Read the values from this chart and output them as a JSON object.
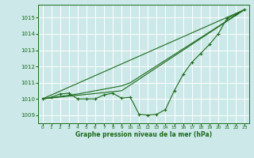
{
  "xlabel": "Graphe pression niveau de la mer (hPa)",
  "background_color": "#cce8e8",
  "grid_color": "#ffffff",
  "line_color": "#1a6b1a",
  "xlim": [
    -0.5,
    23.5
  ],
  "ylim": [
    1008.5,
    1015.8
  ],
  "yticks": [
    1009,
    1010,
    1011,
    1012,
    1013,
    1014,
    1015
  ],
  "xticks": [
    0,
    1,
    2,
    3,
    4,
    5,
    6,
    7,
    8,
    9,
    10,
    11,
    12,
    13,
    14,
    15,
    16,
    17,
    18,
    19,
    20,
    21,
    22,
    23
  ],
  "series1_x": [
    0,
    1,
    2,
    3,
    4,
    5,
    6,
    7,
    8,
    9,
    10,
    11,
    12,
    13,
    14,
    15,
    16,
    17,
    18,
    19,
    20,
    21,
    22,
    23
  ],
  "series1_y": [
    1010.0,
    1010.1,
    1010.3,
    1010.35,
    1010.0,
    1010.0,
    1010.0,
    1010.25,
    1010.35,
    1010.05,
    1010.1,
    1009.05,
    1009.0,
    1009.05,
    1009.35,
    1010.5,
    1011.5,
    1012.25,
    1012.8,
    1013.35,
    1014.0,
    1014.95,
    1015.2,
    1015.5
  ],
  "series2_x": [
    0,
    23
  ],
  "series2_y": [
    1010.0,
    1015.5
  ],
  "series3_x": [
    0,
    9,
    23
  ],
  "series3_y": [
    1010.0,
    1010.5,
    1015.5
  ],
  "series4_x": [
    0,
    4,
    9,
    10,
    23
  ],
  "series4_y": [
    1010.0,
    1010.3,
    1010.8,
    1011.0,
    1015.5
  ]
}
